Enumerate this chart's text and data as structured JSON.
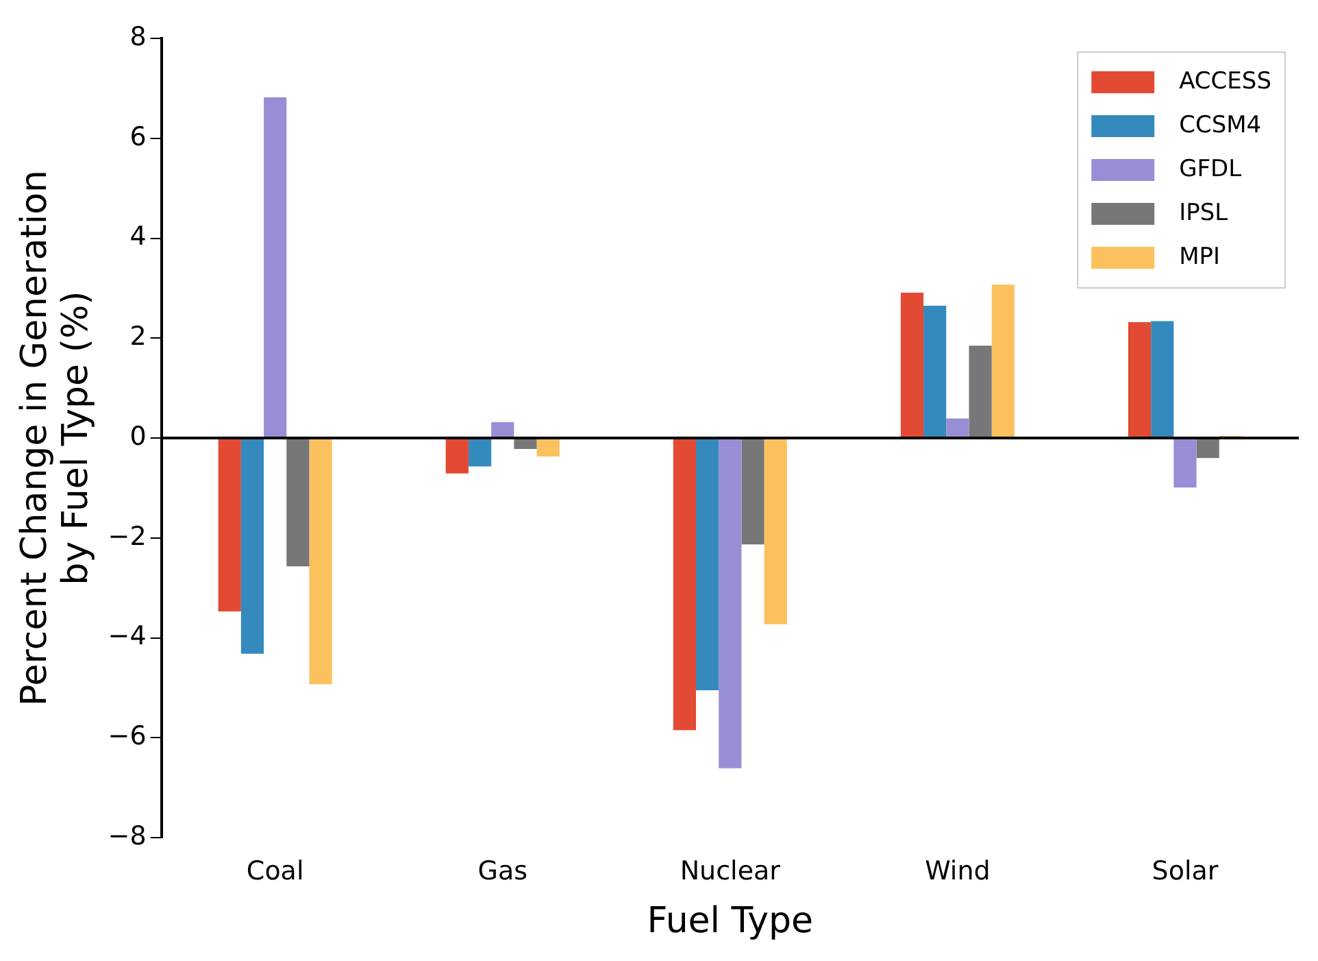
{
  "chart_data": {
    "type": "bar",
    "xlabel": "Fuel Type",
    "ylabel": "Percent Change in Generation by Fuel Type (%)",
    "categories": [
      "Coal",
      "Gas",
      "Nuclear",
      "Wind",
      "Solar"
    ],
    "series": [
      {
        "name": "ACCESS",
        "color": "#e24a33",
        "values": [
          -3.47,
          -0.71,
          -5.85,
          2.91,
          2.32
        ]
      },
      {
        "name": "CCSM4",
        "color": "#348abd",
        "values": [
          -4.32,
          -0.57,
          -5.05,
          2.65,
          2.34
        ]
      },
      {
        "name": "GFDL",
        "color": "#988ed5",
        "values": [
          6.82,
          0.32,
          -6.61,
          0.39,
          -0.99
        ]
      },
      {
        "name": "IPSL",
        "color": "#777777",
        "values": [
          -2.57,
          -0.22,
          -2.13,
          1.85,
          -0.4
        ]
      },
      {
        "name": "MPI",
        "color": "#fbc15e",
        "values": [
          -4.93,
          -0.37,
          -3.73,
          3.07,
          0.04
        ]
      }
    ],
    "ylim": [
      -8,
      8
    ],
    "yticks": [
      -8,
      -6,
      -4,
      -2,
      0,
      2,
      4,
      6,
      8
    ],
    "ref_lines": [
      {
        "axis": "y",
        "value": 0,
        "color": "#000000"
      }
    ],
    "grid": false,
    "legend": "top right"
  }
}
